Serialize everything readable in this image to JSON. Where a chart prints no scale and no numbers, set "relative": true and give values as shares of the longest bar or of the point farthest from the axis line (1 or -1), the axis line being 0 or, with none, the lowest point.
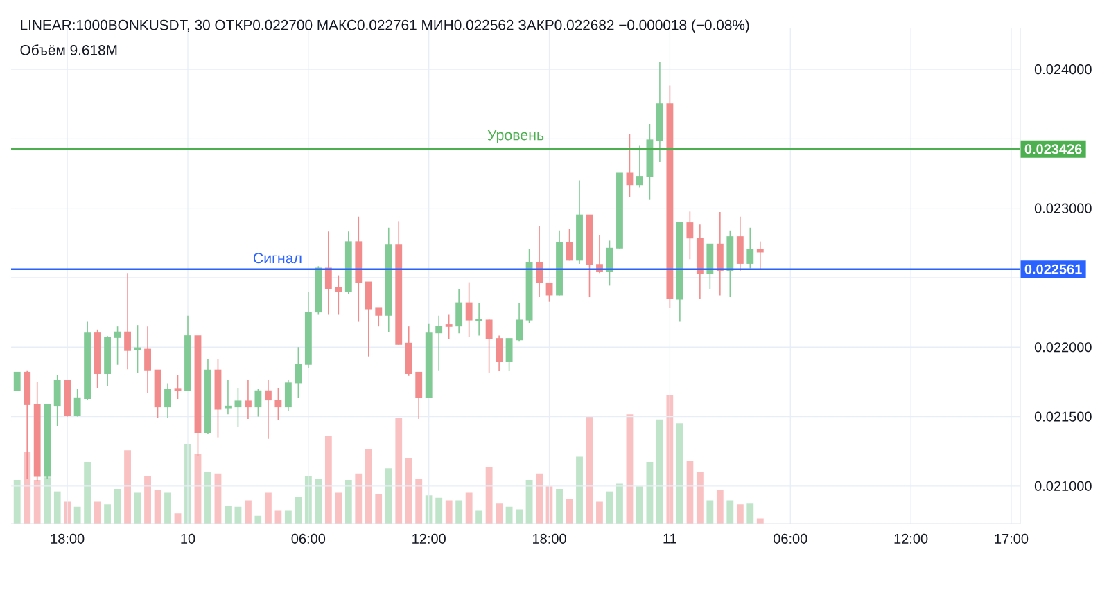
{
  "chart_data": [
    {
      "type": "candlestick",
      "title": "LINEAR:1000BONKUSDT, 30  ОТКР0.022700  МАКС0.022761  МИН0.022562  ЗАКР0.022682  −0.000018 (−0.08%)",
      "categories": [
        null,
        null,
        null,
        null,
        null,
        "18:00",
        null,
        null,
        null,
        null,
        null,
        null,
        null,
        null,
        null,
        null,
        null,
        "10",
        null,
        null,
        null,
        null,
        null,
        null,
        null,
        null,
        null,
        null,
        null,
        "06:00",
        null,
        null,
        null,
        null,
        null,
        null,
        null,
        null,
        null,
        null,
        null,
        "12:00",
        null,
        null,
        null,
        null,
        null,
        null,
        null,
        null,
        null,
        null,
        null,
        "18:00",
        null,
        null,
        null,
        null,
        null,
        null,
        null,
        null,
        null,
        null,
        null,
        "11",
        null,
        null,
        null,
        null,
        null,
        null,
        null,
        null,
        null,
        null,
        null,
        "06:00",
        null,
        null,
        null,
        null,
        null,
        null,
        null,
        null,
        null,
        null,
        null,
        "12:00",
        null,
        null,
        null,
        null,
        null,
        null,
        null,
        null,
        null,
        "17:00"
      ],
      "ylim": [
        0.02073,
        0.0243
      ],
      "yticks": [
        {
          "value": 0.021,
          "label": "0.021000"
        },
        {
          "value": 0.0215,
          "label": "0.021500"
        },
        {
          "value": 0.022,
          "label": "0.022000"
        },
        {
          "value": 0.0225,
          "label": null
        },
        {
          "value": 0.023,
          "label": "0.023000"
        },
        {
          "value": 0.0235,
          "label": null
        },
        {
          "value": 0.024,
          "label": "0.024000"
        }
      ],
      "grid": true,
      "ohlc": [
        [
          0.021683,
          0.021817,
          0.021683,
          0.021817
        ],
        [
          0.021817,
          0.021833,
          0.02105,
          0.021583
        ],
        [
          0.021583,
          0.02175,
          0.021033,
          0.021067
        ],
        [
          0.021067,
          0.021583,
          0.02105,
          0.021583
        ],
        [
          0.021577,
          0.0218,
          0.021433,
          0.02176
        ],
        [
          0.02176,
          0.021767,
          0.0215,
          0.021507
        ],
        [
          0.021507,
          0.0217,
          0.0215,
          0.021633
        ],
        [
          0.021627,
          0.022183,
          0.021617,
          0.0221
        ],
        [
          0.0221,
          0.022127,
          0.021707,
          0.021807
        ],
        [
          0.021807,
          0.02208,
          0.021717,
          0.022067
        ],
        [
          0.022067,
          0.02215,
          0.021873,
          0.022107
        ],
        [
          0.022107,
          0.022533,
          0.02184,
          0.021973
        ],
        [
          0.02198,
          0.02216,
          0.021817,
          0.021993
        ],
        [
          0.021983,
          0.02215,
          0.021667,
          0.021833
        ],
        [
          0.021833,
          0.021833,
          0.02149,
          0.021567
        ],
        [
          0.021567,
          0.02174,
          0.02149,
          0.021693
        ],
        [
          0.0217,
          0.0218,
          0.021627,
          0.021687
        ],
        [
          0.021683,
          0.022227,
          0.021683,
          0.02208
        ],
        [
          0.02208,
          0.02208,
          0.021217,
          0.021383
        ],
        [
          0.021383,
          0.021917,
          0.021373,
          0.021833
        ],
        [
          0.021833,
          0.021917,
          0.02135,
          0.02155
        ],
        [
          0.02156,
          0.021767,
          0.021517,
          0.021573
        ],
        [
          0.021567,
          0.021707,
          0.021427,
          0.02161
        ],
        [
          0.02161,
          0.021767,
          0.021483,
          0.021567
        ],
        [
          0.021567,
          0.0217,
          0.0215,
          0.021683
        ],
        [
          0.021683,
          0.021767,
          0.02134,
          0.021617
        ],
        [
          0.021617,
          0.021707,
          0.021477,
          0.021567
        ],
        [
          0.021567,
          0.021767,
          0.02154,
          0.02174
        ],
        [
          0.02174,
          0.022,
          0.021633,
          0.021873
        ],
        [
          0.021873,
          0.0224,
          0.02185,
          0.02225
        ],
        [
          0.02225,
          0.022583,
          0.022233,
          0.022567
        ],
        [
          0.022567,
          0.022833,
          0.022233,
          0.022417
        ],
        [
          0.022427,
          0.022517,
          0.022233,
          0.0224
        ],
        [
          0.0224,
          0.022833,
          0.022383,
          0.022757
        ],
        [
          0.022757,
          0.02294,
          0.022183,
          0.02246
        ],
        [
          0.022467,
          0.022467,
          0.021933,
          0.022273
        ],
        [
          0.022283,
          0.022283,
          0.02215,
          0.022227
        ],
        [
          0.022227,
          0.02286,
          0.022107,
          0.022733
        ],
        [
          0.022733,
          0.022907,
          0.022017,
          0.022017
        ],
        [
          0.022027,
          0.02215,
          0.021793,
          0.021807
        ],
        [
          0.021817,
          0.021817,
          0.021483,
          0.021633
        ],
        [
          0.021633,
          0.022167,
          0.021633,
          0.0221
        ],
        [
          0.0221,
          0.022227,
          0.021833,
          0.02215
        ],
        [
          0.02216,
          0.022233,
          0.02206,
          0.022147
        ],
        [
          0.02215,
          0.022417,
          0.0221,
          0.022317
        ],
        [
          0.022317,
          0.022467,
          0.022073,
          0.022193
        ],
        [
          0.022187,
          0.022317,
          0.022083,
          0.0222
        ],
        [
          0.022193,
          0.0222,
          0.021817,
          0.02206
        ],
        [
          0.02206,
          0.022083,
          0.021827,
          0.021893
        ],
        [
          0.021893,
          0.02206,
          0.021827,
          0.02206
        ],
        [
          0.02205,
          0.022317,
          0.02204,
          0.022193
        ],
        [
          0.022193,
          0.022707,
          0.022173,
          0.022607
        ],
        [
          0.022607,
          0.022873,
          0.02236,
          0.02246
        ],
        [
          0.02246,
          0.02246,
          0.022327,
          0.022373
        ],
        [
          0.022373,
          0.02284,
          0.022373,
          0.02275
        ],
        [
          0.02275,
          0.02285,
          0.022623,
          0.022623
        ],
        [
          0.022623,
          0.0232,
          0.0226,
          0.02295
        ],
        [
          0.02295,
          0.02295,
          0.02236,
          0.022593
        ],
        [
          0.022593,
          0.022807,
          0.022533,
          0.02254
        ],
        [
          0.02254,
          0.022767,
          0.022443,
          0.02271
        ],
        [
          0.02271,
          0.02325,
          0.02271,
          0.02325
        ],
        [
          0.02325,
          0.023533,
          0.023083,
          0.023167
        ],
        [
          0.023167,
          0.02345,
          0.02315,
          0.023227
        ],
        [
          0.023227,
          0.023607,
          0.02306,
          0.02349
        ],
        [
          0.023483,
          0.02405,
          0.023333,
          0.02375
        ],
        [
          0.02375,
          0.023883,
          0.022283,
          0.02235
        ],
        [
          0.022343,
          0.022893,
          0.022183,
          0.022893
        ],
        [
          0.022893,
          0.022977,
          0.022633,
          0.022783
        ],
        [
          0.022783,
          0.022883,
          0.02235,
          0.022527
        ],
        [
          0.022527,
          0.02274,
          0.022417,
          0.02274
        ],
        [
          0.02274,
          0.022973,
          0.022373,
          0.02255
        ],
        [
          0.02255,
          0.02284,
          0.02236,
          0.022793
        ],
        [
          0.022793,
          0.02294,
          0.02255,
          0.0226
        ],
        [
          0.0226,
          0.02286,
          0.022567,
          0.0227
        ],
        [
          0.0227,
          0.022761,
          0.022562,
          0.022682
        ],
        null,
        null,
        null,
        null,
        null,
        null,
        null,
        null,
        null,
        null,
        null,
        null,
        null,
        null,
        null,
        null,
        null,
        null,
        null,
        null,
        null,
        null,
        null,
        null,
        null
      ],
      "colors": [
        "#81c995",
        "#f28b8b",
        "#f28b8b",
        "#81c995",
        "#81c995",
        "#f28b8b",
        "#81c995",
        "#81c995",
        "#f28b8b",
        "#81c995",
        "#81c995",
        "#f28b8b",
        "#81c995",
        "#f28b8b",
        "#f28b8b",
        "#81c995",
        "#f28b8b",
        "#81c995",
        "#f28b8b",
        "#81c995",
        "#f28b8b",
        "#81c995",
        "#81c995",
        "#f28b8b",
        "#81c995",
        "#f28b8b",
        "#f28b8b",
        "#81c995",
        "#81c995",
        "#81c995",
        "#81c995",
        "#f28b8b",
        "#f28b8b",
        "#81c995",
        "#f28b8b",
        "#f28b8b",
        "#f28b8b",
        "#81c995",
        "#f28b8b",
        "#f28b8b",
        "#f28b8b",
        "#81c995",
        "#81c995",
        "#f28b8b",
        "#81c995",
        "#f28b8b",
        "#81c995",
        "#f28b8b",
        "#f28b8b",
        "#81c995",
        "#81c995",
        "#81c995",
        "#f28b8b",
        "#f28b8b",
        "#81c995",
        "#f28b8b",
        "#81c995",
        "#f28b8b",
        "#f28b8b",
        "#81c995",
        "#81c995",
        "#f28b8b",
        "#81c995",
        "#81c995",
        "#81c995",
        "#f28b8b",
        "#81c995",
        "#f28b8b",
        "#f28b8b",
        "#81c995",
        "#f28b8b",
        "#81c995",
        "#f28b8b",
        "#81c995",
        "#f28b8b",
        null,
        null,
        null,
        null,
        null,
        null,
        null,
        null,
        null,
        null,
        null,
        null,
        null,
        null,
        null,
        null,
        null,
        null,
        null,
        null,
        null,
        null,
        null,
        null,
        null
      ],
      "ref_lines": [
        {
          "axis": "y",
          "value": 0.023426,
          "label": "Уровень",
          "color": "#4caf50"
        },
        {
          "axis": "y",
          "value": 0.022561,
          "label": "Сигнал",
          "color": "#2962ff"
        }
      ],
      "annotations": [
        "0.023426",
        "0.022561"
      ]
    },
    {
      "type": "bar",
      "relative": true,
      "tick_labels": false,
      "title": "Объём 9.618M",
      "categories": [
        null,
        null,
        null,
        null,
        null,
        null,
        null,
        null,
        null,
        null,
        null,
        null,
        null,
        null,
        null,
        null,
        null,
        null,
        null,
        null,
        null,
        null,
        null,
        null,
        null,
        null,
        null,
        null,
        null,
        null,
        null,
        null,
        null,
        null,
        null,
        null,
        null,
        null,
        null,
        null,
        null,
        null,
        null,
        null,
        null,
        null,
        null,
        null,
        null,
        null,
        null,
        null,
        null,
        null,
        null,
        null,
        null,
        null,
        null,
        null,
        null,
        null,
        null,
        null,
        null,
        null,
        null,
        null,
        null,
        null,
        null,
        null,
        null,
        null,
        null,
        null,
        null,
        null,
        null,
        null,
        null,
        null,
        null,
        null,
        null,
        null,
        null,
        null,
        null,
        null,
        null,
        null,
        null,
        null,
        null,
        null,
        null,
        null,
        null,
        null
      ],
      "values": [
        0.34,
        0.56,
        0.34,
        0.36,
        0.25,
        0.17,
        0.13,
        0.48,
        0.17,
        0.15,
        0.27,
        0.57,
        0.24,
        0.37,
        0.26,
        0.24,
        0.08,
        0.62,
        0.54,
        0.4,
        0.39,
        0.14,
        0.13,
        0.18,
        0.06,
        0.24,
        0.1,
        0.1,
        0.21,
        0.37,
        0.35,
        0.68,
        0.24,
        0.34,
        0.39,
        0.58,
        0.23,
        0.43,
        0.82,
        0.51,
        0.35,
        0.22,
        0.2,
        0.18,
        0.18,
        0.24,
        0.1,
        0.44,
        0.16,
        0.13,
        0.11,
        0.34,
        0.39,
        0.29,
        0.27,
        0.19,
        0.52,
        0.83,
        0.17,
        0.25,
        0.31,
        0.85,
        0.29,
        0.48,
        0.81,
        1,
        0.78,
        0.49,
        0.4,
        0.18,
        0.26,
        0.18,
        0.15,
        0.16,
        0.04,
        null,
        null,
        null,
        null,
        null,
        null,
        null,
        null,
        null,
        null,
        null,
        null,
        null,
        null,
        null,
        null,
        null,
        null,
        null,
        null,
        null,
        null,
        null,
        null,
        null
      ],
      "colors": [
        "#c0e4c9",
        "#f9c1c1",
        "#f9c1c1",
        "#c0e4c9",
        "#c0e4c9",
        "#f9c1c1",
        "#c0e4c9",
        "#c0e4c9",
        "#f9c1c1",
        "#c0e4c9",
        "#c0e4c9",
        "#f9c1c1",
        "#c0e4c9",
        "#f9c1c1",
        "#f9c1c1",
        "#c0e4c9",
        "#f9c1c1",
        "#c0e4c9",
        "#f9c1c1",
        "#c0e4c9",
        "#f9c1c1",
        "#c0e4c9",
        "#c0e4c9",
        "#f9c1c1",
        "#c0e4c9",
        "#f9c1c1",
        "#f9c1c1",
        "#c0e4c9",
        "#c0e4c9",
        "#c0e4c9",
        "#c0e4c9",
        "#f9c1c1",
        "#f9c1c1",
        "#c0e4c9",
        "#f9c1c1",
        "#f9c1c1",
        "#f9c1c1",
        "#c0e4c9",
        "#f9c1c1",
        "#f9c1c1",
        "#f9c1c1",
        "#c0e4c9",
        "#c0e4c9",
        "#f9c1c1",
        "#c0e4c9",
        "#f9c1c1",
        "#c0e4c9",
        "#f9c1c1",
        "#f9c1c1",
        "#c0e4c9",
        "#c0e4c9",
        "#c0e4c9",
        "#f9c1c1",
        "#f9c1c1",
        "#c0e4c9",
        "#f9c1c1",
        "#c0e4c9",
        "#f9c1c1",
        "#f9c1c1",
        "#c0e4c9",
        "#c0e4c9",
        "#f9c1c1",
        "#c0e4c9",
        "#c0e4c9",
        "#c0e4c9",
        "#f9c1c1",
        "#c0e4c9",
        "#f9c1c1",
        "#f9c1c1",
        "#c0e4c9",
        "#f9c1c1",
        "#c0e4c9",
        "#f9c1c1",
        "#c0e4c9",
        "#f9c1c1",
        null,
        null,
        null,
        null,
        null,
        null,
        null,
        null,
        null,
        null,
        null,
        null,
        null,
        null,
        null,
        null,
        null,
        null,
        null,
        null,
        null,
        null,
        null,
        null,
        null
      ]
    }
  ]
}
